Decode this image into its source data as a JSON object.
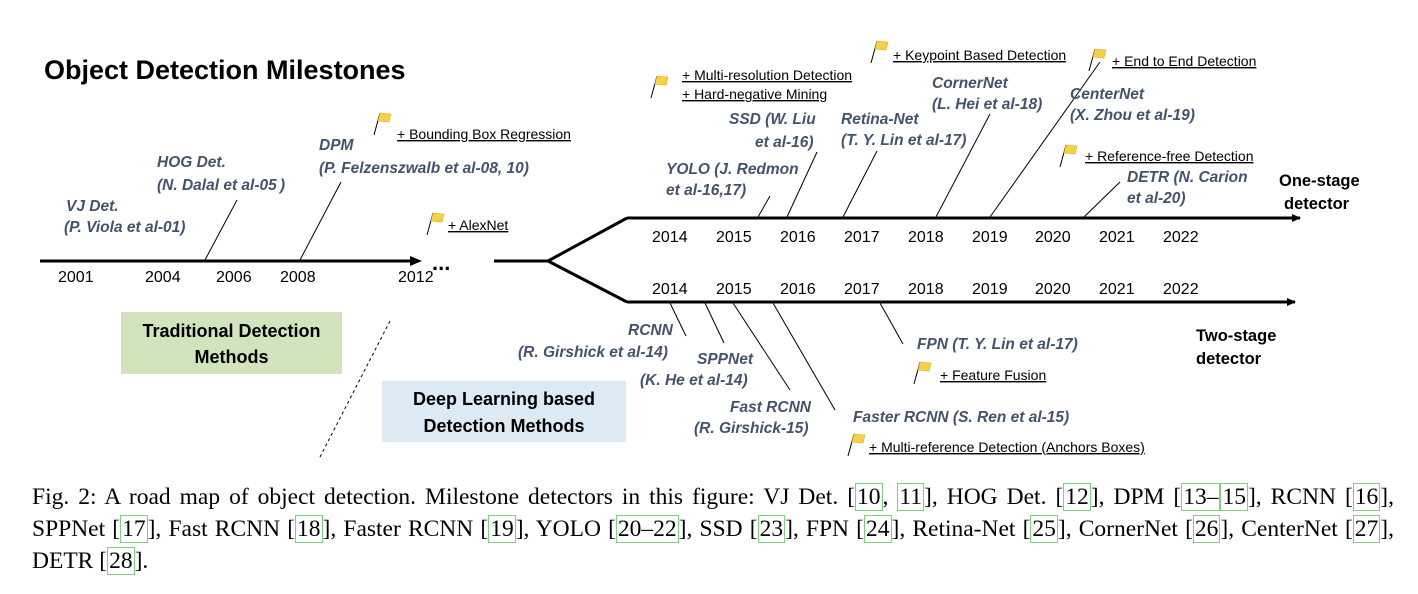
{
  "title": "Object Detection Milestones",
  "timeline_years": [
    "2001",
    "2004",
    "2006",
    "2008",
    "2012"
  ],
  "ellipsis": "...",
  "upper_years": [
    "2014",
    "2015",
    "2016",
    "2017",
    "2018",
    "2019",
    "2020",
    "2021",
    "2022"
  ],
  "lower_years": [
    "2014",
    "2015",
    "2016",
    "2017",
    "2018",
    "2019",
    "2020",
    "2021",
    "2022"
  ],
  "branch_labels": {
    "one_stage_1": "One-stage",
    "one_stage_2": "detector",
    "two_stage_1": "Two-stage",
    "two_stage_2": "detector"
  },
  "boxes": {
    "traditional_1": "Traditional Detection",
    "traditional_2": "Methods",
    "deep_1": "Deep Learning based",
    "deep_2": "Detection Methods"
  },
  "detectors": {
    "vj_1": "VJ Det.",
    "vj_2": "(P. Viola et al-01)",
    "hog_1": "HOG Det.",
    "hog_2": "(N. Dalal et al-05 )",
    "dpm_1": "DPM",
    "dpm_2": "(P. Felzenszwalb et al-08, 10)",
    "yolo_1": "YOLO (J. Redmon",
    "yolo_2": "et al-16,17)",
    "ssd_1": "SSD (W. Liu",
    "ssd_2": "et al-16)",
    "retina_1": "Retina-Net",
    "retina_2": "(T. Y. Lin et al-17)",
    "corner_1": "CornerNet",
    "corner_2": "(L. Hei et al-18)",
    "center_1": "CenterNet",
    "center_2": "(X. Zhou et al-19)",
    "detr_1": "DETR (N. Carion",
    "detr_2": "et al-20)",
    "rcnn_1": "RCNN",
    "rcnn_2": "(R. Girshick et al-14)",
    "spp_1": "SPPNet",
    "spp_2": "(K. He et al-14)",
    "fast_1": "Fast RCNN",
    "fast_2": "(R. Girshick-15)",
    "faster": "Faster RCNN (S. Ren et al-15)",
    "fpn": "FPN (T. Y. Lin et al-17)"
  },
  "notes": {
    "bbox": "+ Bounding Box Regression",
    "alexnet": "+ AlexNet",
    "multires": "+ Multi-resolution Detection",
    "hardneg": "+ Hard-negative Mining",
    "keypoint": "+ Keypoint Based Detection",
    "e2e": "+ End to End Detection",
    "reffree": "+ Reference-free Detection",
    "fusion": "+ Feature Fusion",
    "multiref": "+ Multi-reference Detection (Anchors Boxes)"
  },
  "flag_color": "#f6d048",
  "box_colors": {
    "traditional": "#d2e4bd",
    "deep": "#dde9f3"
  },
  "caption": {
    "prefix": "Fig. 2: A road map of object detection. Milestone detectors in this figure: VJ Det. ",
    "r10": "10",
    "s1": ", ",
    "r11": "11",
    "s2": "], HOG Det. [",
    "r12": "12",
    "s3": "], DPM [",
    "r13": "13–",
    "r15": "15",
    "s4": "], RCNN [",
    "r16": "16",
    "s5": "], SPPNet [",
    "r17": "17",
    "s6": "], Fast RCNN [",
    "r18": "18",
    "s7": "], Faster RCNN [",
    "r19": "19",
    "s8": "], YOLO [",
    "r20": "20–22",
    "s9": "], SSD [",
    "r23": "23",
    "s10": "], FPN [",
    "r24": "24",
    "s11": "], Retina-Net [",
    "r25": "25",
    "s12": "], CornerNet [",
    "r26": "26",
    "s13": "], CenterNet [",
    "r27": "27",
    "s14": "], DETR [",
    "r28": "28",
    "s15": "]."
  }
}
